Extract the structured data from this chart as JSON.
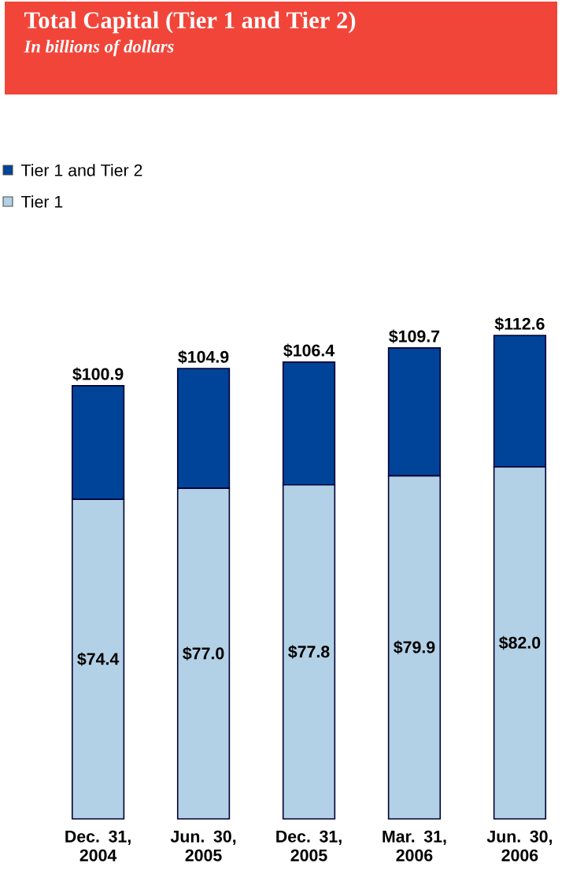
{
  "chart_data": {
    "type": "bar",
    "title": "Total Capital (Tier 1 and Tier 2)",
    "subtitle": "*In billions of dollars*",
    "categories": [
      "Dec. 31, 2004",
      "Jun. 30, 2005",
      "Dec. 31, 2005",
      "Mar. 31, 2006",
      "Jun. 30, 2006"
    ],
    "series": [
      {
        "name": "Tier 1",
        "color": "#b3d1e6",
        "values": [
          74.4,
          77.0,
          77.8,
          79.9,
          82.0
        ],
        "value_labels": [
          "$74.4",
          "$77.0",
          "$77.8",
          "$79.9",
          "$82.0"
        ]
      },
      {
        "name": "Tier 1 and Tier 2",
        "color": "#00449a",
        "values": [
          26.5,
          27.9,
          28.6,
          29.8,
          30.6
        ]
      }
    ],
    "totals": [
      "$100.9",
      "$104.9",
      "$106.4",
      "$109.7",
      "$112.6"
    ],
    "stacked": true,
    "legend": "top left",
    "tick_labels": "x"
  }
}
